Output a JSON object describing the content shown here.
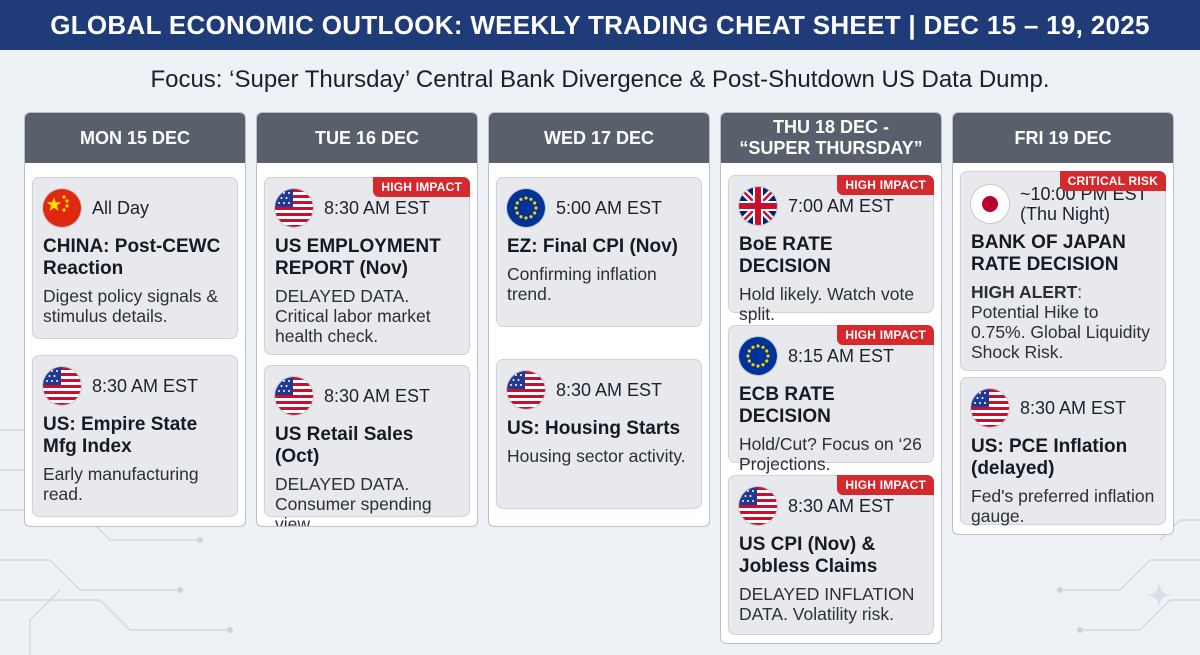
{
  "header": {
    "title": "GLOBAL ECONOMIC OUTLOOK: WEEKLY TRADING CHEAT SHEET | DEC 15 – 19, 2025"
  },
  "subtitle": "Focus: ‘Super Thursday’ Central Bank Divergence & Post-Shutdown US Data Dump.",
  "colors": {
    "header_bg": "#1f3b78",
    "day_head_bg": "#58606c",
    "badge_red": "#d42a2e",
    "card_bg": "#e7e9ed"
  },
  "days": [
    {
      "label": "MON 15 DEC",
      "events": [
        {
          "flag": "china-flag-icon",
          "time": "All Day",
          "title": "CHINA: Post-CEWC Reaction",
          "desc": "Digest policy signals & stimulus details."
        },
        {
          "flag": "us-flag-icon",
          "time": "8:30 AM EST",
          "title": "US: Empire State Mfg Index",
          "desc": "Early manufacturing read."
        }
      ]
    },
    {
      "label": "TUE 16 DEC",
      "events": [
        {
          "badge": "HIGH IMPACT",
          "flag": "us-flag-icon",
          "time": "8:30 AM EST",
          "title": "US EMPLOYMENT REPORT (Nov)",
          "desc": "DELAYED DATA. Critical labor market health check."
        },
        {
          "flag": "us-flag-icon",
          "time": "8:30 AM EST",
          "title": "US Retail Sales (Oct)",
          "desc": "DELAYED DATA. Consumer spending view."
        }
      ]
    },
    {
      "label": "WED 17 DEC",
      "events": [
        {
          "flag": "eu-flag-icon",
          "time": "5:00 AM EST",
          "title": "EZ: Final CPI (Nov)",
          "desc": "Confirming inflation trend."
        },
        {
          "flag": "us-flag-icon",
          "time": "8:30 AM EST",
          "title": "US: Housing Starts",
          "desc": "Housing sector activity."
        }
      ]
    },
    {
      "label_line1": "THU 18 DEC -",
      "label_line2": "“SUPER THURSDAY”",
      "events": [
        {
          "badge": "HIGH IMPACT",
          "flag": "uk-flag-icon",
          "time": "7:00 AM EST",
          "title": "BoE RATE DECISION",
          "desc": "Hold likely. Watch vote split."
        },
        {
          "badge": "HIGH IMPACT",
          "flag": "eu-flag-icon",
          "time": "8:15 AM EST",
          "title": "ECB RATE DECISION",
          "desc": "Hold/Cut? Focus on ‘26 Projections."
        },
        {
          "badge": "HIGH IMPACT",
          "flag": "us-flag-icon",
          "time": "8:30 AM EST",
          "title": "US CPI (Nov) & Jobless Claims",
          "desc": "DELAYED INFLATION DATA. Volatility risk."
        }
      ]
    },
    {
      "label": "FRI 19 DEC",
      "events": [
        {
          "badge": "CRITICAL RISK",
          "flag": "japan-flag-icon",
          "time_line1": "~10:00 PM EST",
          "time_line2": "(Thu Night)",
          "title": "BANK OF JAPAN RATE DECISION",
          "desc_bold": "HIGH ALERT",
          "desc": ": Potential Hike to 0.75%. Global Liquidity Shock Risk."
        },
        {
          "flag": "us-flag-icon",
          "time": "8:30 AM EST",
          "title": "US: PCE Inflation (delayed)",
          "desc": "Fed's preferred inflation gauge."
        }
      ]
    }
  ]
}
